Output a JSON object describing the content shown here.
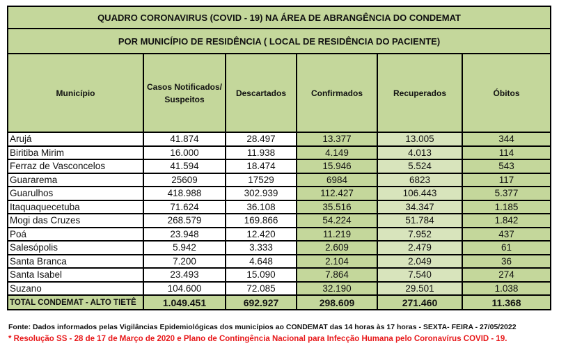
{
  "title": "QUADRO CORONAVIRUS (COVID - 19) NA ÁREA DE ABRANGÊNCIA DO CONDEMAT",
  "subtitle": "POR MUNICÍPIO DE RESIDÊNCIA ( LOCAL DE RESIDÊNCIA DO PACIENTE)",
  "colors": {
    "header_green": "#c4d79b",
    "light_green": "#d8e4bc",
    "footnote_red": "#e8191b"
  },
  "columns": {
    "municipio": "Município",
    "notificados": "Casos Notificados/ Suspeitos",
    "descartados": "Descartados",
    "confirmados": "Confirmados",
    "recuperados": "Recuperados",
    "obitos": "Óbitos"
  },
  "rows": [
    {
      "municipio": "Arujá",
      "notificados": "41.874",
      "descartados": "28.497",
      "confirmados": "13.377",
      "recuperados": "13.005",
      "obitos": "344"
    },
    {
      "municipio": "Biritiba Mirim",
      "notificados": "16.000",
      "descartados": "11.938",
      "confirmados": "4.149",
      "recuperados": "4.013",
      "obitos": "114"
    },
    {
      "municipio": "Ferraz de Vasconcelos",
      "notificados": "41.594",
      "descartados": "18.474",
      "confirmados": "15.946",
      "recuperados": "5.524",
      "obitos": "543"
    },
    {
      "municipio": "Guararema",
      "notificados": "25609",
      "descartados": "17529",
      "confirmados": "6984",
      "recuperados": "6823",
      "obitos": "117"
    },
    {
      "municipio": "Guarulhos",
      "notificados": "418.988",
      "descartados": "302.939",
      "confirmados": "112.427",
      "recuperados": "106.443",
      "obitos": "5.377"
    },
    {
      "municipio": "Itaquaquecetuba",
      "notificados": "71.624",
      "descartados": "36.108",
      "confirmados": "35.516",
      "recuperados": "34.347",
      "obitos": "1.185"
    },
    {
      "municipio": "Mogi das Cruzes",
      "notificados": "268.579",
      "descartados": "169.866",
      "confirmados": "54.224",
      "recuperados": "51.784",
      "obitos": "1.842"
    },
    {
      "municipio": "Poá",
      "notificados": "23.948",
      "descartados": "12.420",
      "confirmados": "11.219",
      "recuperados": "7.952",
      "obitos": "437"
    },
    {
      "municipio": "Salesópolis",
      "notificados": "5.942",
      "descartados": "3.333",
      "confirmados": "2.609",
      "recuperados": "2.479",
      "obitos": "61"
    },
    {
      "municipio": "Santa Branca",
      "notificados": "7.200",
      "descartados": "4.648",
      "confirmados": "2.104",
      "recuperados": "2.049",
      "obitos": "36"
    },
    {
      "municipio": "Santa Isabel",
      "notificados": "23.493",
      "descartados": "15.090",
      "confirmados": "7.864",
      "recuperados": "7.540",
      "obitos": "274"
    },
    {
      "municipio": "Suzano",
      "notificados": "104.600",
      "descartados": "72.085",
      "confirmados": "32.190",
      "recuperados": "29.501",
      "obitos": "1.038"
    }
  ],
  "total": {
    "municipio": "TOTAL CONDEMAT - ALTO TIETÊ",
    "notificados": "1.049.451",
    "descartados": "692.927",
    "confirmados": "298.609",
    "recuperados": "271.460",
    "obitos": "11.368"
  },
  "footer": {
    "source": "Fonte: Dados informados pelas Vigilâncias Epidemiológicas dos municípios ao CONDEMAT das 14 horas às 17 horas - SEXTA- FEIRA - 27/05/2022",
    "note": "* Resolução SS - 28 de 17 de Março de 2020 e Plano de Contingência Nacional para Infecção Humana pelo Coronavírus COVID - 19."
  }
}
